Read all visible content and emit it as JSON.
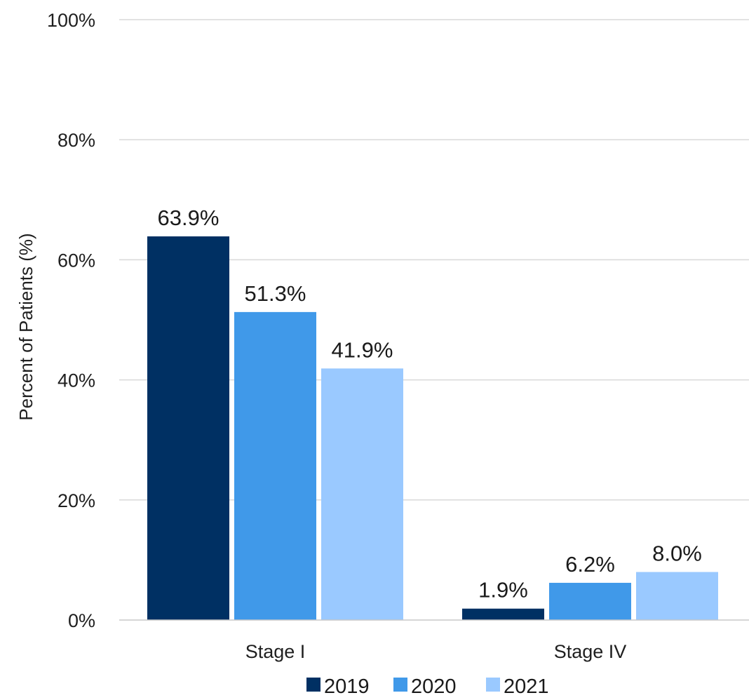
{
  "chart_data": {
    "type": "bar",
    "title": "",
    "xlabel": "",
    "ylabel": "Percent of Patients (%)",
    "ylim": [
      0,
      100
    ],
    "y_ticks": [
      "0%",
      "20%",
      "40%",
      "60%",
      "80%",
      "100%"
    ],
    "grid": true,
    "legend_position": "bottom",
    "categories": [
      "Stage I",
      "Stage IV"
    ],
    "series": [
      {
        "name": "2019",
        "color": "#003063",
        "values": [
          63.9,
          1.9
        ],
        "labels": [
          "63.9%",
          "1.9%"
        ]
      },
      {
        "name": "2020",
        "color": "#4099e9",
        "values": [
          51.3,
          6.2
        ],
        "labels": [
          "51.3%",
          "6.2%"
        ]
      },
      {
        "name": "2021",
        "color": "#9ac9ff",
        "values": [
          41.9,
          8.0
        ],
        "labels": [
          "41.9%",
          "8.0%"
        ]
      }
    ]
  }
}
